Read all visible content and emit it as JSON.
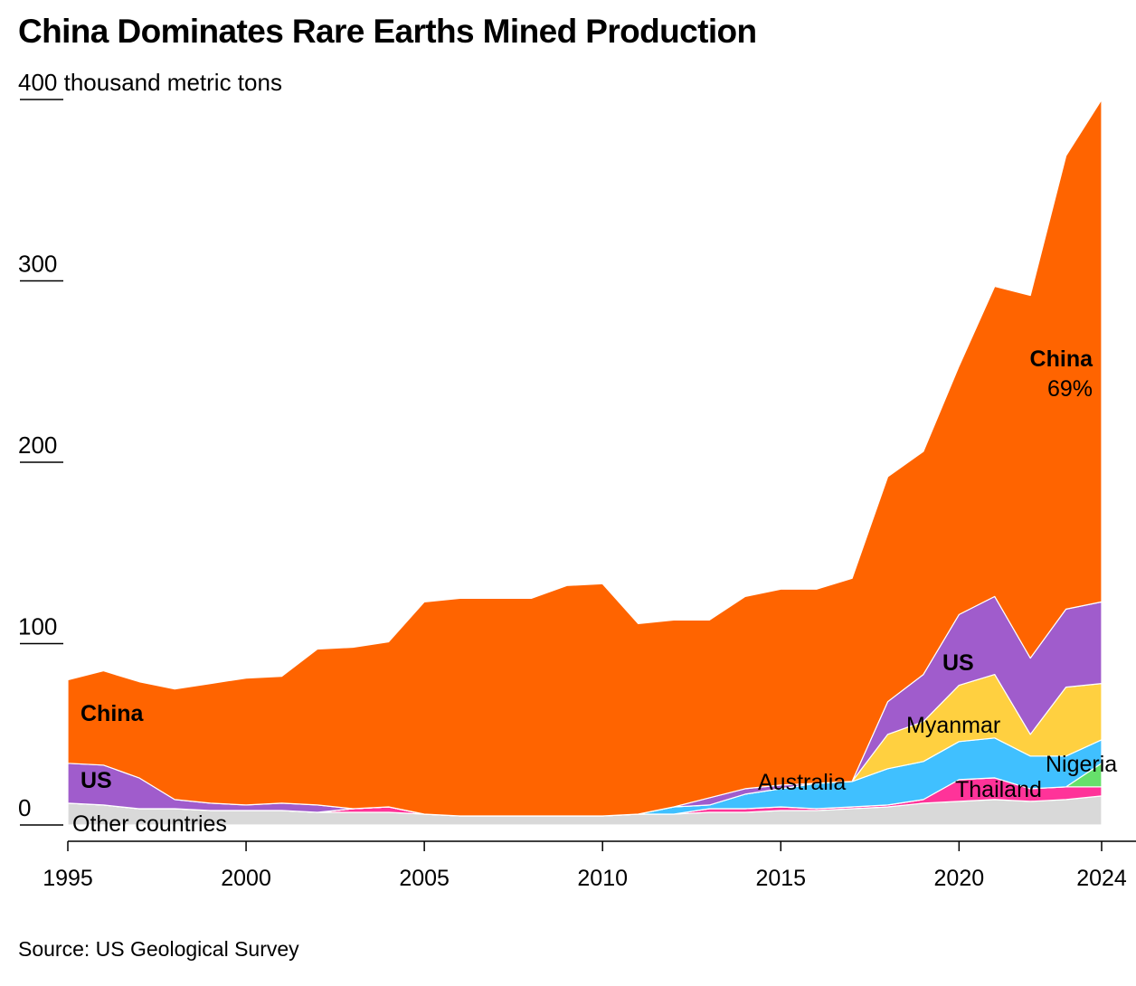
{
  "title": "China Dominates Rare Earths Mined Production",
  "source": "Source: US Geological Survey",
  "chart_data": {
    "type": "area",
    "title": "China Dominates Rare Earths Mined Production",
    "ylabel": "thousand metric tons",
    "y_unit_label": "400 thousand metric tons",
    "ylim": [
      0,
      400
    ],
    "y_ticks": [
      "0",
      "100",
      "200",
      "300",
      "400"
    ],
    "x_ticks": [
      "1995",
      "2000",
      "2005",
      "2010",
      "2015",
      "2020",
      "2024"
    ],
    "xlim": [
      1995,
      2024
    ],
    "x": [
      1995,
      1996,
      1997,
      1998,
      1999,
      2000,
      2001,
      2002,
      2003,
      2004,
      2005,
      2006,
      2007,
      2008,
      2009,
      2010,
      2011,
      2012,
      2013,
      2014,
      2015,
      2016,
      2017,
      2018,
      2019,
      2020,
      2021,
      2022,
      2023,
      2024
    ],
    "series": [
      {
        "name": "Other countries",
        "color": "#d9d9d9",
        "values": [
          12,
          11,
          9,
          9,
          8,
          8,
          8,
          7,
          7,
          7,
          6,
          5,
          5,
          5,
          5,
          5,
          6,
          6,
          7,
          7,
          8,
          8,
          9,
          10,
          12,
          13,
          14,
          13,
          14,
          16
        ]
      },
      {
        "name": "Thailand",
        "color": "#ff3399",
        "values": [
          0,
          0,
          0,
          0,
          0,
          0,
          0,
          0,
          2,
          3,
          0,
          0,
          0,
          0,
          0,
          0,
          0,
          0,
          2,
          2,
          2,
          1,
          1,
          1,
          2,
          12,
          12,
          7,
          7,
          5
        ]
      },
      {
        "name": "Nigeria",
        "color": "#66e06b",
        "values": [
          0,
          0,
          0,
          0,
          0,
          0,
          0,
          0,
          0,
          0,
          0,
          0,
          0,
          0,
          0,
          0,
          0,
          0,
          0,
          0,
          0,
          0,
          0,
          0,
          0,
          0,
          0,
          0,
          0,
          13
        ]
      },
      {
        "name": "Australia",
        "color": "#40c0ff",
        "values": [
          0,
          0,
          0,
          0,
          0,
          0,
          0,
          0,
          0,
          0,
          0,
          0,
          0,
          0,
          0,
          0,
          0,
          4,
          2,
          8,
          10,
          14,
          14,
          20,
          21,
          21,
          22,
          18,
          17,
          13
        ]
      },
      {
        "name": "Myanmar",
        "color": "#ffd040",
        "values": [
          0,
          0,
          0,
          0,
          0,
          0,
          0,
          0,
          0,
          0,
          0,
          0,
          0,
          0,
          0,
          0,
          0,
          0,
          0,
          0,
          0,
          0,
          0,
          19,
          22,
          31,
          35,
          12,
          38,
          31
        ]
      },
      {
        "name": "US",
        "color": "#a05ccc",
        "values": [
          22,
          22,
          17,
          5,
          4,
          3,
          4,
          4,
          0,
          0,
          0,
          0,
          0,
          0,
          0,
          0,
          0,
          0,
          4,
          3,
          2,
          0,
          0,
          18,
          26,
          39,
          43,
          42,
          43,
          45
        ]
      },
      {
        "name": "China",
        "color": "#ff6400",
        "values": [
          46,
          52,
          53,
          61,
          66,
          70,
          70,
          86,
          89,
          91,
          117,
          120,
          120,
          120,
          127,
          128,
          105,
          103,
          98,
          106,
          108,
          107,
          112,
          124,
          123,
          137,
          171,
          200,
          250,
          277
        ]
      }
    ],
    "annotations": {
      "china_left": "China",
      "us_left": "US",
      "other": "Other countries",
      "australia": "Australia",
      "us_right": "US",
      "myanmar": "Myanmar",
      "thailand": "Thailand",
      "nigeria": "Nigeria",
      "china_right": "China",
      "china_share": "69%"
    }
  }
}
